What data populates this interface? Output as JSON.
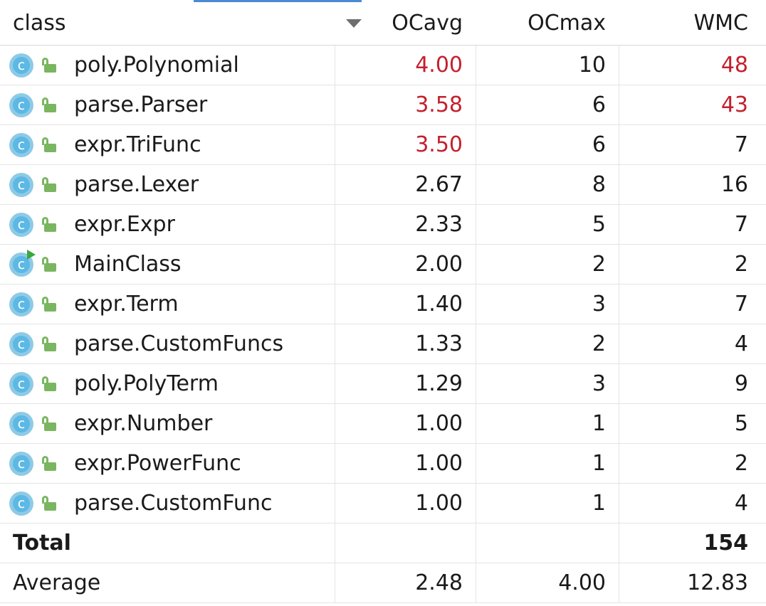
{
  "header": {
    "class": "class",
    "ocavg": "OCavg",
    "ocmax": "OCmax",
    "wmc": "WMC"
  },
  "rows": [
    {
      "name": "poly.Polynomial",
      "ocavg": "4.00",
      "ocmax": "10",
      "wmc": "48",
      "ocavg_hl": true,
      "wmc_hl": true,
      "icon": "class-icon"
    },
    {
      "name": "parse.Parser",
      "ocavg": "3.58",
      "ocmax": "6",
      "wmc": "43",
      "ocavg_hl": true,
      "wmc_hl": true,
      "icon": "class-icon"
    },
    {
      "name": "expr.TriFunc",
      "ocavg": "3.50",
      "ocmax": "6",
      "wmc": "7",
      "ocavg_hl": true,
      "wmc_hl": false,
      "icon": "class-icon"
    },
    {
      "name": "parse.Lexer",
      "ocavg": "2.67",
      "ocmax": "8",
      "wmc": "16",
      "ocavg_hl": false,
      "wmc_hl": false,
      "icon": "class-icon"
    },
    {
      "name": "expr.Expr",
      "ocavg": "2.33",
      "ocmax": "5",
      "wmc": "7",
      "ocavg_hl": false,
      "wmc_hl": false,
      "icon": "class-icon"
    },
    {
      "name": "MainClass",
      "ocavg": "2.00",
      "ocmax": "2",
      "wmc": "2",
      "ocavg_hl": false,
      "wmc_hl": false,
      "icon": "runnable-class-icon"
    },
    {
      "name": "expr.Term",
      "ocavg": "1.40",
      "ocmax": "3",
      "wmc": "7",
      "ocavg_hl": false,
      "wmc_hl": false,
      "icon": "class-icon"
    },
    {
      "name": "parse.CustomFuncs",
      "ocavg": "1.33",
      "ocmax": "2",
      "wmc": "4",
      "ocavg_hl": false,
      "wmc_hl": false,
      "icon": "class-icon"
    },
    {
      "name": "poly.PolyTerm",
      "ocavg": "1.29",
      "ocmax": "3",
      "wmc": "9",
      "ocavg_hl": false,
      "wmc_hl": false,
      "icon": "class-icon"
    },
    {
      "name": "expr.Number",
      "ocavg": "1.00",
      "ocmax": "1",
      "wmc": "5",
      "ocavg_hl": false,
      "wmc_hl": false,
      "icon": "class-icon"
    },
    {
      "name": "expr.PowerFunc",
      "ocavg": "1.00",
      "ocmax": "1",
      "wmc": "2",
      "ocavg_hl": false,
      "wmc_hl": false,
      "icon": "class-icon"
    },
    {
      "name": "parse.CustomFunc",
      "ocavg": "1.00",
      "ocmax": "1",
      "wmc": "4",
      "ocavg_hl": false,
      "wmc_hl": false,
      "icon": "class-icon"
    }
  ],
  "total": {
    "label": "Total",
    "ocavg": "",
    "ocmax": "",
    "wmc": "154"
  },
  "average": {
    "label": "Average",
    "ocavg": "2.48",
    "ocmax": "4.00",
    "wmc": "12.83"
  },
  "colors": {
    "highlight": "#c4202e",
    "class_icon": "#5cb8e4",
    "lock": "#7ab660",
    "run": "#3aa83a"
  }
}
